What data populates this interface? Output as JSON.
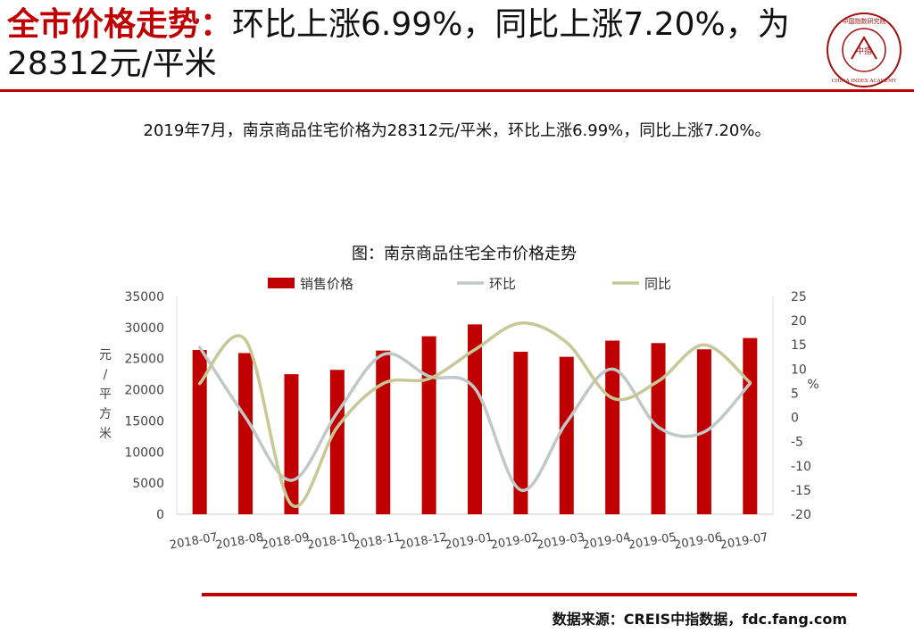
{
  "header": {
    "title_red": "全市价格走势：",
    "title_rest": "环比上涨6.99%，同比上涨7.20%，为28312元/平米",
    "subtitle": "2019年7月，南京商品住宅价格为28312元/平米，环比上涨6.99%，同比上涨7.20%。"
  },
  "logo": {
    "center_text": "中指",
    "ring_text_top": "中国指数研究院",
    "ring_text_bottom": "CHINA INDEX ACADEMY"
  },
  "colors": {
    "accent": "#c00000",
    "bar": "#c00000",
    "mom_line": "#c0c8c8",
    "yoy_line": "#c8c896"
  },
  "chart_data": {
    "type": "bar",
    "title": "图：南京商品住宅全市价格走势",
    "categories": [
      "2018-07",
      "2018-08",
      "2018-09",
      "2018-10",
      "2018-11",
      "2018-12",
      "2019-01",
      "2019-02",
      "2019-03",
      "2019-04",
      "2019-05",
      "2019-06",
      "2019-07"
    ],
    "series": [
      {
        "name": "销售价格",
        "type": "bar",
        "axis": "left",
        "values": [
          26400,
          25900,
          22500,
          23200,
          26300,
          28600,
          30500,
          26100,
          25300,
          27900,
          27500,
          26500,
          28312
        ]
      },
      {
        "name": "环比",
        "type": "line",
        "axis": "right",
        "values": [
          14.5,
          0,
          -13,
          1,
          13,
          8.5,
          6,
          -15,
          -1,
          10,
          -2,
          -3,
          7
        ]
      },
      {
        "name": "同比",
        "type": "line",
        "axis": "right",
        "values": [
          7,
          16,
          -18,
          -2,
          7,
          8,
          14,
          19.5,
          15.5,
          4,
          7.5,
          15,
          7.2
        ]
      }
    ],
    "ylabel": "元/平方米",
    "ylabel_right": "%",
    "ylim": [
      0,
      35000
    ],
    "ylim_right": [
      -20,
      25
    ],
    "yticks": [
      "0",
      "5000",
      "10000",
      "15000",
      "20000",
      "25000",
      "30000",
      "35000"
    ],
    "yticks_right": [
      "-20",
      "-15",
      "-10",
      "-5",
      "0",
      "5",
      "10",
      "15",
      "20",
      "25"
    ],
    "legend_position": "top",
    "grid": false
  },
  "footer": {
    "source": "数据来源：CREIS中指数据，fdc.fang.com"
  }
}
